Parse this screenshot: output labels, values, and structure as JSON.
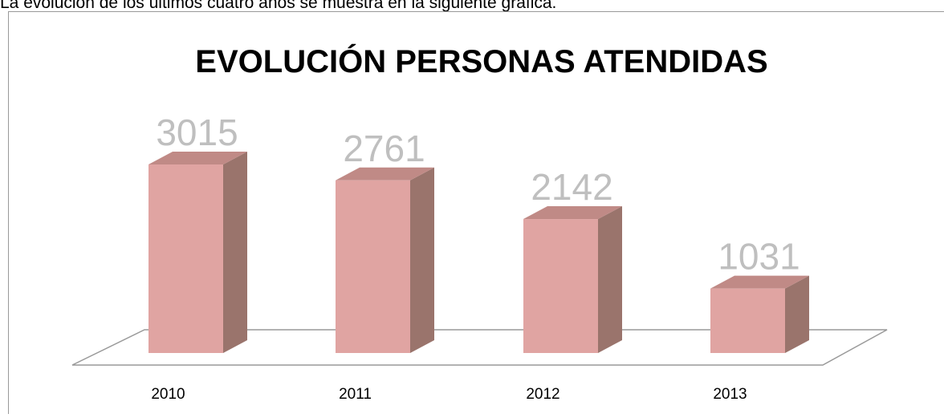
{
  "intro": "La evolución de los últimos cuatro años se muestra en la siguiente gráfica.",
  "chart_data": {
    "type": "bar3d",
    "title": "EVOLUCIÓN PERSONAS ATENDIDAS",
    "categories": [
      "2010",
      "2011",
      "2012",
      "2013"
    ],
    "values": [
      3015,
      2761,
      2142,
      1031
    ],
    "color": "#e0a4a2"
  }
}
